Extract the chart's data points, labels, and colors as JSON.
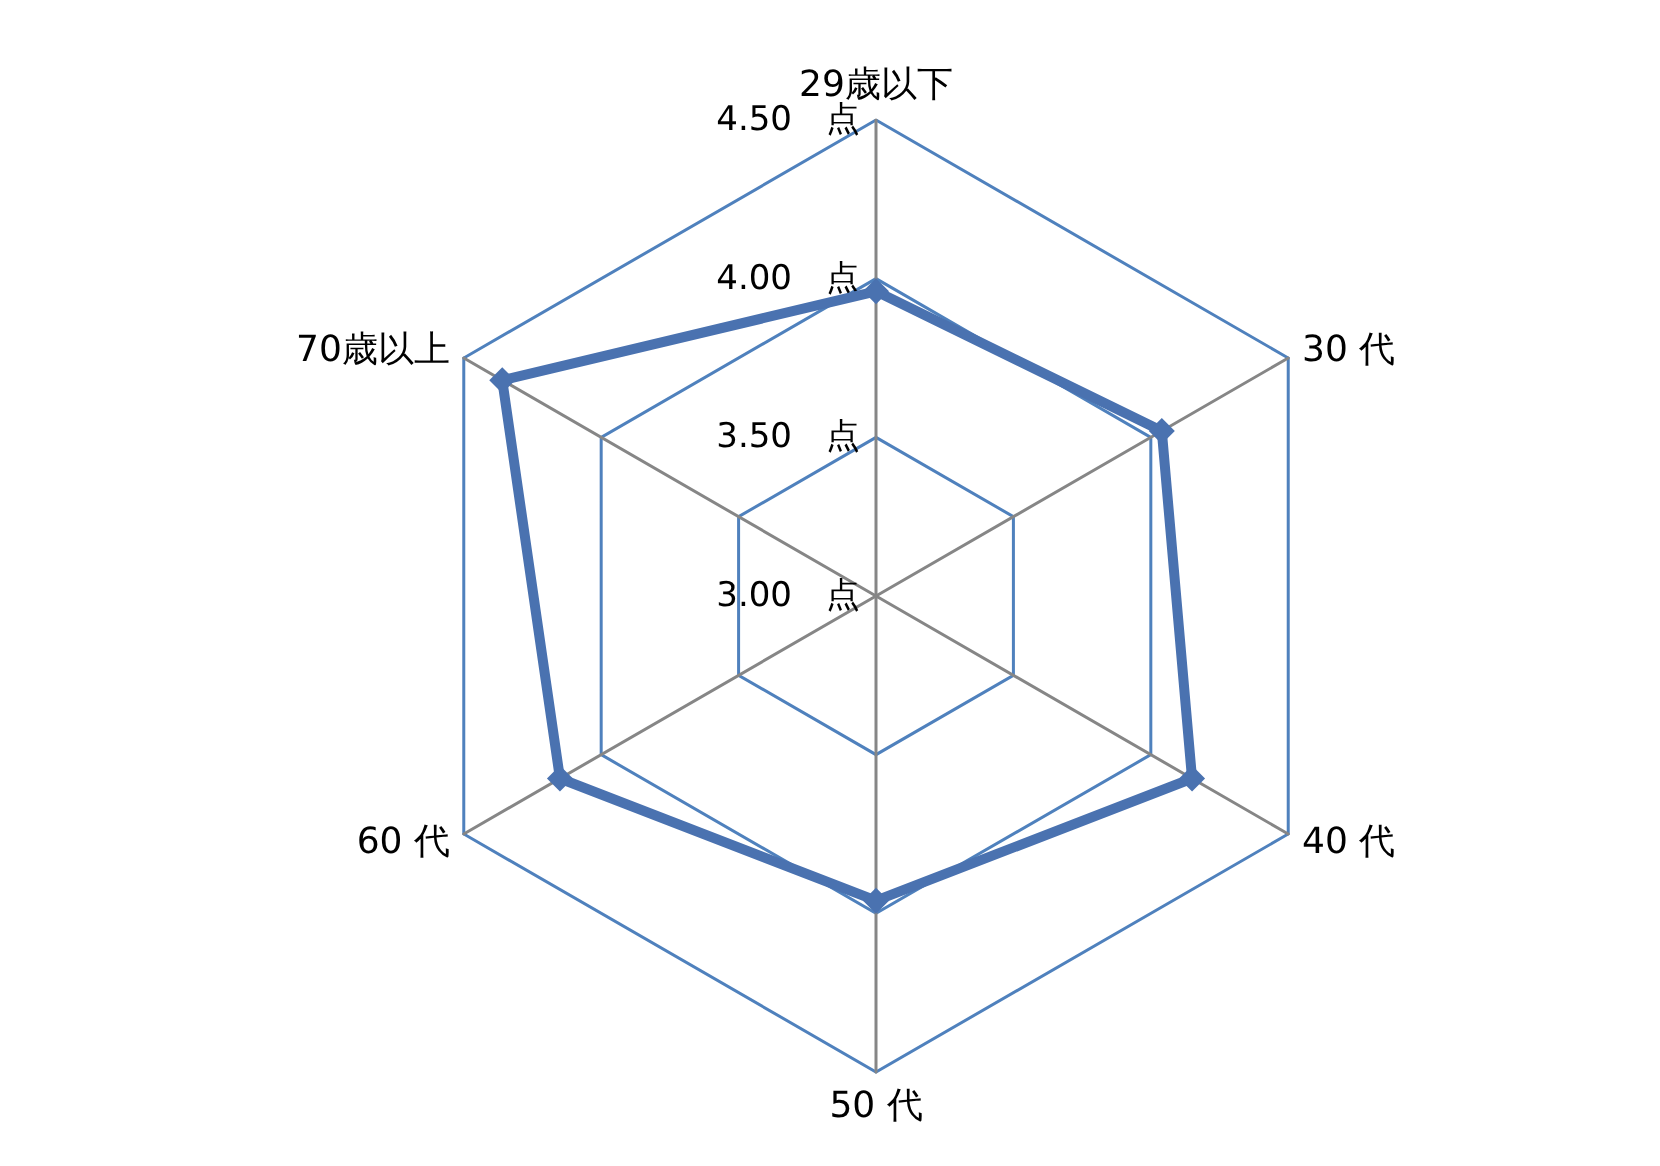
{
  "chart_data": {
    "type": "radar",
    "categories": [
      "29歳以下",
      "30 代",
      "40 代",
      "50 代",
      "60 代",
      "70歳以上"
    ],
    "series": [
      {
        "color": "#4a72b0",
        "values": [
          3.96,
          4.04,
          4.15,
          3.96,
          4.15,
          4.36
        ]
      }
    ],
    "ylim": [
      3,
      4.5
    ],
    "yticks": [
      {
        "value": 3,
        "label": "3.00　点"
      },
      {
        "value": 3.5,
        "label": "3.50　点"
      },
      {
        "value": 4,
        "label": "4.00　点"
      },
      {
        "value": 4.5,
        "label": "4.50　点"
      }
    ],
    "grid": true,
    "marker": "diamond",
    "line_style": "solid"
  }
}
